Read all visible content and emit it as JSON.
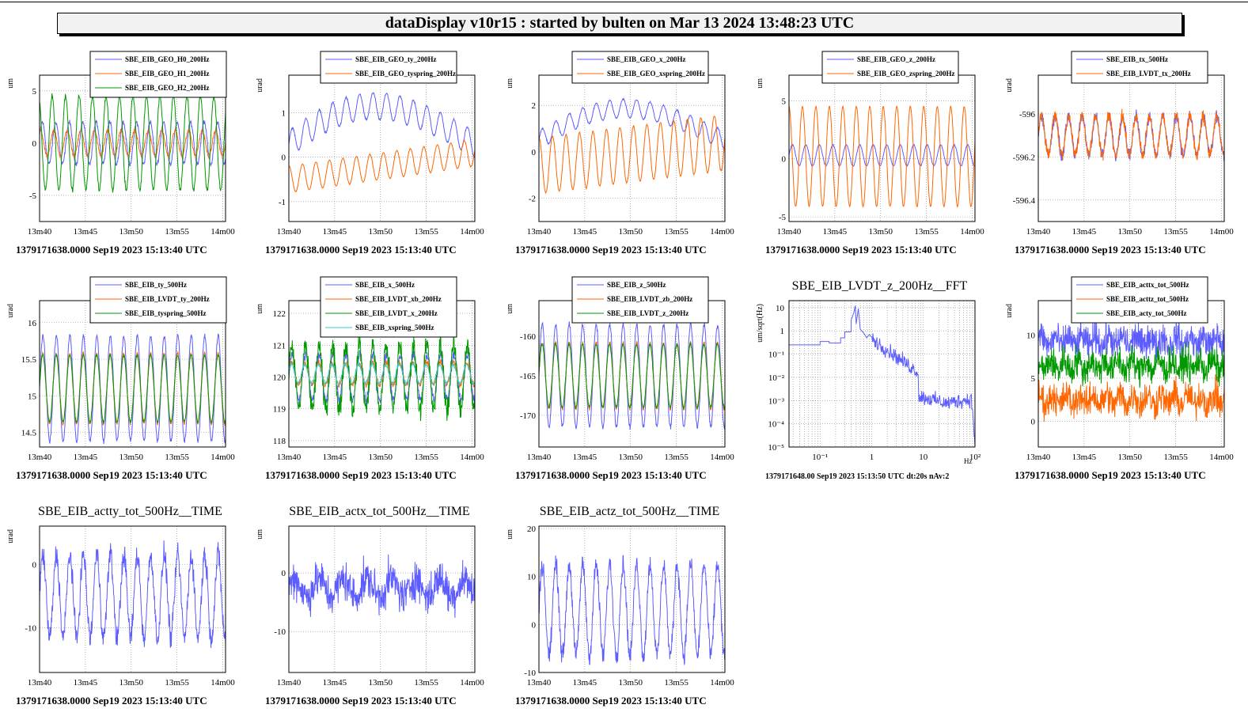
{
  "banner": "dataDisplay v10r15 : started by bulten on Mar 13 2024 13:48:23 UTC",
  "chart_data": [
    {
      "type": "line",
      "ylabel": "um",
      "xticks": [
        "13m40",
        "13m45",
        "13m50",
        "13m55",
        "14m00"
      ],
      "yticks": [
        -5,
        0,
        5
      ],
      "ylim": [
        -7.5,
        6.5
      ],
      "footer": "1379171638.0000 Sep19 2023 15:13:40 UTC",
      "series": [
        {
          "name": "SBE_EIB_GEO_H0_200Hz",
          "color": "#5d5dff",
          "base": 0,
          "amp": 2,
          "period": 1.45,
          "phase": 0.3,
          "noise": 0.2
        },
        {
          "name": "SBE_EIB_GEO_H1_200Hz",
          "color": "#ff6600",
          "base": 0,
          "amp": 1.2,
          "period": 1.45,
          "phase": 1.2,
          "noise": 0.15
        },
        {
          "name": "SBE_EIB_GEO_H2_200Hz",
          "color": "#009900",
          "base": 0,
          "amp": 4.5,
          "period": 1.45,
          "phase": 2.0,
          "noise": 0.2
        }
      ]
    },
    {
      "type": "line",
      "ylabel": "urad",
      "xticks": [
        "13m40",
        "13m45",
        "13m50",
        "13m55",
        "14m00"
      ],
      "yticks": [
        -1,
        0,
        1
      ],
      "ylim": [
        -1.45,
        1.85
      ],
      "footer": "1379171638.0000 Sep19 2023 15:13:40 UTC",
      "series": [
        {
          "name": "SBE_EIB_GEO_ty_200Hz",
          "color": "#5d5dff",
          "base": 0.3,
          "amp": 0.3,
          "period": 1.45,
          "phase": 0,
          "noise": 0.02,
          "swell": 1.0
        },
        {
          "name": "SBE_EIB_GEO_tyspring_200Hz",
          "color": "#ff6600",
          "base": -0.5,
          "amp": 0.3,
          "period": 1.45,
          "phase": 1.5,
          "noise": 0.01,
          "drift": 0.6
        }
      ]
    },
    {
      "type": "line",
      "ylabel": "um",
      "xticks": [
        "13m40",
        "13m45",
        "13m50",
        "13m55",
        "14m00"
      ],
      "yticks": [
        -2,
        0,
        2
      ],
      "ylim": [
        -3.0,
        3.3
      ],
      "footer": "1379171638.0000 Sep19 2023 15:13:40 UTC",
      "series": [
        {
          "name": "SBE_EIB_GEO_x_200Hz",
          "color": "#5d5dff",
          "base": 0.5,
          "amp": 0.4,
          "period": 1.45,
          "phase": 0,
          "noise": 0.03,
          "swell": 1.6
        },
        {
          "name": "SBE_EIB_GEO_xspring_200Hz",
          "color": "#ff6600",
          "base": -0.6,
          "amp": 1.2,
          "period": 1.45,
          "phase": 1.5,
          "noise": 0.03,
          "drift": 1.0
        }
      ]
    },
    {
      "type": "line",
      "ylabel": "um",
      "xticks": [
        "13m40",
        "13m45",
        "13m50",
        "13m55",
        "14m00"
      ],
      "yticks": [
        -5,
        0,
        5
      ],
      "ylim": [
        -5.4,
        7.2
      ],
      "footer": "1379171638.0000 Sep19 2023 15:13:40 UTC",
      "series": [
        {
          "name": "SBE_EIB_GEO_z_200Hz",
          "color": "#5d5dff",
          "base": 0.3,
          "amp": 0.9,
          "period": 1.45,
          "phase": 0,
          "noise": 0.05
        },
        {
          "name": "SBE_EIB_GEO_zspring_200Hz",
          "color": "#ff6600",
          "base": 0.2,
          "amp": 4.3,
          "period": 1.45,
          "phase": 1.6,
          "noise": 0.05
        }
      ]
    },
    {
      "type": "line",
      "ylabel": "urad",
      "xticks": [
        "13m40",
        "13m45",
        "13m50",
        "13m55",
        "14m00"
      ],
      "yticks": [
        -596,
        -596.2,
        -596.4
      ],
      "ylim": [
        -596.5,
        -595.82
      ],
      "footer": "1379171638.0000 Sep19 2023 15:13:40 UTC",
      "series": [
        {
          "name": "SBE_EIB_tx_500Hz",
          "color": "#5d5dff",
          "base": -596.1,
          "amp": 0.09,
          "period": 1.45,
          "phase": 0,
          "noise": 0.025
        },
        {
          "name": "SBE_EIB_LVDT_tx_200Hz",
          "color": "#ff6600",
          "base": -596.1,
          "amp": 0.09,
          "period": 1.45,
          "phase": 0.05,
          "noise": 0.025
        }
      ]
    },
    {
      "type": "line",
      "ylabel": "urad",
      "xticks": [
        "13m40",
        "13m45",
        "13m50",
        "13m55",
        "14m00"
      ],
      "yticks": [
        14.5,
        15,
        15.5,
        16
      ],
      "ylim": [
        14.3,
        16.3
      ],
      "footer": "1379171638.0000 Sep19 2023 15:13:40 UTC",
      "series": [
        {
          "name": "SBE_EIB_ty_500Hz",
          "color": "#5d5dff",
          "base": 15.1,
          "amp": 0.72,
          "period": 1.45,
          "phase": 0,
          "noise": 0.03
        },
        {
          "name": "SBE_EIB_LVDT_ty_200Hz",
          "color": "#ff6600",
          "base": 15.1,
          "amp": 0.48,
          "period": 1.45,
          "phase": 0.1,
          "noise": 0.02
        },
        {
          "name": "SBE_EIB_tyspring_500Hz",
          "color": "#009900",
          "base": 15.1,
          "amp": 0.46,
          "period": 1.45,
          "phase": 0.05,
          "noise": 0.02
        }
      ]
    },
    {
      "type": "line",
      "ylabel": "um",
      "xticks": [
        "13m40",
        "13m45",
        "13m50",
        "13m55",
        "14m00"
      ],
      "yticks": [
        118,
        119,
        120,
        121,
        122
      ],
      "ylim": [
        117.8,
        122.4
      ],
      "footer": "1379171638.0000 Sep19 2023 15:13:40 UTC",
      "series": [
        {
          "name": "SBE_EIB_x_500Hz",
          "color": "#5d5dff",
          "base": 120,
          "amp": 0.7,
          "period": 1.45,
          "phase": 0,
          "noise": 0.15
        },
        {
          "name": "SBE_EIB_LVDT_xb_200Hz",
          "color": "#ff6600",
          "base": 120.1,
          "amp": 0.35,
          "period": 1.45,
          "phase": 0.2,
          "noise": 0.08
        },
        {
          "name": "SBE_EIB_LVDT_x_200Hz",
          "color": "#009900",
          "base": 120,
          "amp": 1.0,
          "period": 1.45,
          "phase": 0.1,
          "noise": 0.3
        },
        {
          "name": "SBE_EIB_xspring_500Hz",
          "color": "#33cccc",
          "base": 120.1,
          "amp": 0.3,
          "period": 1.45,
          "phase": 0.4,
          "noise": 0.05
        }
      ]
    },
    {
      "type": "line",
      "ylabel": "um",
      "xticks": [
        "13m40",
        "13m45",
        "13m50",
        "13m55",
        "14m00"
      ],
      "yticks": [
        -160,
        -165,
        -170
      ],
      "ylim": [
        -174,
        -155.5
      ],
      "footer": "1379171638.0000 Sep19 2023 15:13:40 UTC",
      "series": [
        {
          "name": "SBE_EIB_z_500Hz",
          "color": "#5d5dff",
          "base": -165,
          "amp": 6.5,
          "period": 1.45,
          "phase": 0,
          "noise": 0.3
        },
        {
          "name": "SBE_EIB_LVDT_zb_200Hz",
          "color": "#ff6600",
          "base": -165,
          "amp": 4.2,
          "period": 1.45,
          "phase": 0.05,
          "noise": 0.2
        },
        {
          "name": "SBE_EIB_LVDT_z_200Hz",
          "color": "#009900",
          "base": -165,
          "amp": 4.0,
          "period": 1.45,
          "phase": 0.1,
          "noise": 0.2
        }
      ]
    },
    {
      "type": "fft",
      "title": "SBE_EIB_LVDT_z_200Hz__FFT",
      "ylabel": "um/sqrt(Hz)",
      "xlabel": "Hz",
      "xticks": [
        "10⁻¹",
        "1",
        "10",
        "10²"
      ],
      "yticks": [
        "10",
        "1",
        "10⁻¹",
        "10⁻²",
        "10⁻³",
        "10⁻⁴",
        "10⁻⁵"
      ],
      "xlog": true,
      "ylog": true,
      "xlim": [
        0.025,
        100
      ],
      "ylim": [
        1e-05,
        20
      ],
      "footer": "1379171648.00 Sep19 2023 15:13:50 UTC dt:20s nAv:2",
      "series": [
        {
          "name": "SBE_EIB_LVDT_z_200Hz",
          "color": "#5d5dff"
        }
      ]
    },
    {
      "type": "line",
      "ylabel": "urad",
      "xticks": [
        "13m40",
        "13m45",
        "13m50",
        "13m55",
        "14m00"
      ],
      "yticks": [
        0,
        5,
        10
      ],
      "ylim": [
        -3,
        14
      ],
      "footer": "1379171638.0000 Sep19 2023 15:13:40 UTC",
      "series": [
        {
          "name": "SBE_EIB_acttx_tot_500Hz",
          "color": "#5d5dff",
          "base": 9.3,
          "amp": 0.6,
          "period": 1.45,
          "phase": 0,
          "noise": 1.6
        },
        {
          "name": "SBE_EIB_acttz_tot_500Hz",
          "color": "#ff6600",
          "base": 2.5,
          "amp": 0.6,
          "period": 1.45,
          "phase": 1,
          "noise": 1.6
        },
        {
          "name": "SBE_EIB_acty_tot_500Hz",
          "color": "#009900",
          "base": 6.5,
          "amp": 0.6,
          "period": 1.45,
          "phase": 2,
          "noise": 1.6
        }
      ]
    },
    {
      "type": "line",
      "title": "SBE_EIB_actty_tot_500Hz__TIME",
      "ylabel": "urad",
      "xticks": [
        "13m40",
        "13m45",
        "13m50",
        "13m55",
        "14m00"
      ],
      "yticks": [
        0,
        -10
      ],
      "ylim": [
        -17,
        6
      ],
      "footer": "1379171638.0000 Sep19 2023 15:13:40 UTC",
      "series": [
        {
          "color": "#5d5dff",
          "base": -5,
          "amp": 6.5,
          "period": 1.45,
          "phase": 0,
          "noise": 1.6
        }
      ]
    },
    {
      "type": "line",
      "title": "SBE_EIB_actx_tot_500Hz__TIME",
      "ylabel": "um",
      "xticks": [
        "13m40",
        "13m45",
        "13m50",
        "13m55",
        "14m00"
      ],
      "yticks": [
        0,
        -10
      ],
      "ylim": [
        -17,
        8
      ],
      "footer": "1379171638.0000 Sep19 2023 15:13:40 UTC",
      "series": [
        {
          "color": "#5d5dff",
          "base": -2.5,
          "amp": 1.5,
          "period": 2.6,
          "phase": 0,
          "noise": 2.8
        }
      ]
    },
    {
      "type": "line",
      "title": "SBE_EIB_actz_tot_500Hz__TIME",
      "ylabel": "um",
      "xticks": [
        "13m40",
        "13m45",
        "13m50",
        "13m55",
        "14m00"
      ],
      "yticks": [
        -10,
        0,
        10,
        20
      ],
      "ylim": [
        -10,
        20.5
      ],
      "footer": "1379171638.0000 Sep19 2023 15:13:40 UTC",
      "series": [
        {
          "color": "#5d5dff",
          "base": 3,
          "amp": 9.5,
          "period": 1.45,
          "phase": 0,
          "noise": 1.8
        }
      ]
    }
  ]
}
